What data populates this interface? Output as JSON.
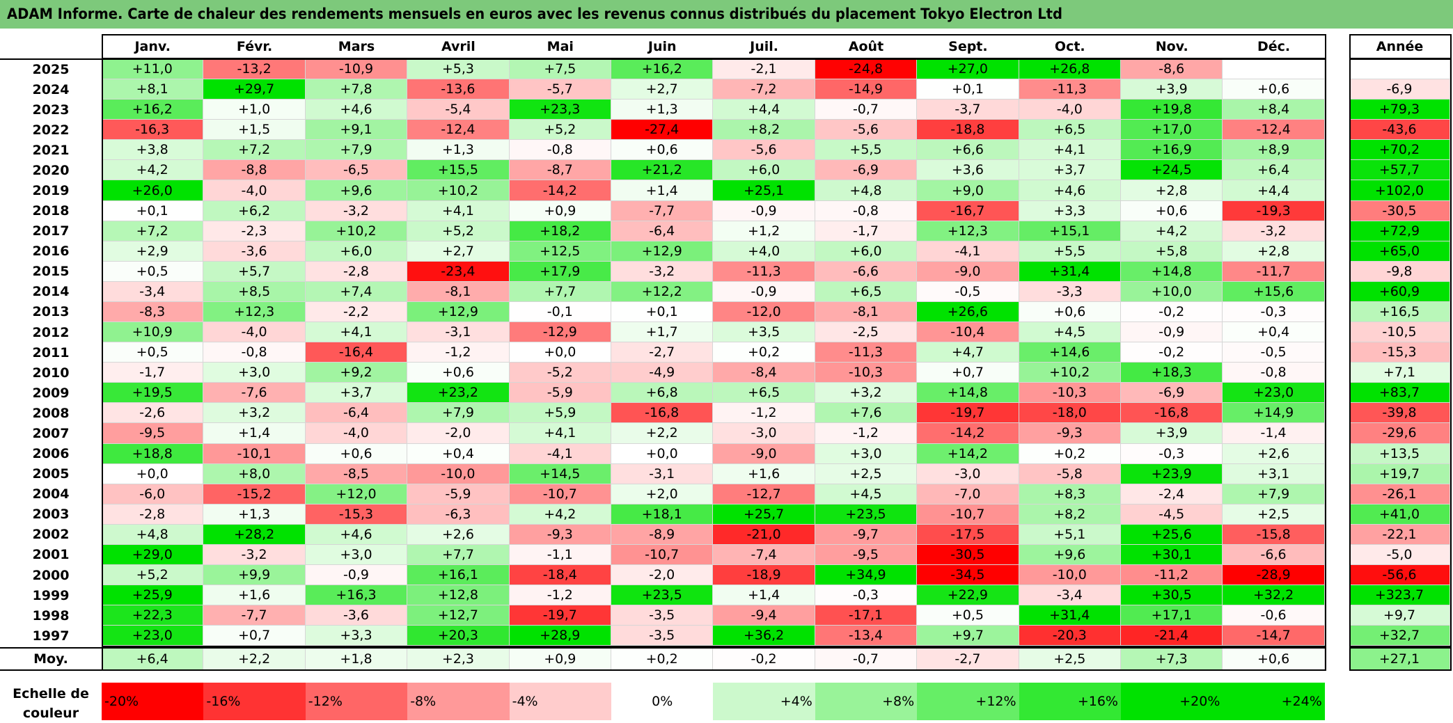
{
  "title": "ADAM Informe. Carte de chaleur des rendements mensuels en euros avec les revenus connus distribués du placement Tokyo Electron Ltd",
  "colors": {
    "title_bg": "#7dc97b",
    "max_green": "#00e000",
    "max_red": "#ff0000",
    "neutral": "#ffffff"
  },
  "chart_data": {
    "type": "heatmap",
    "title": "ADAM Informe. Carte de chaleur des rendements mensuels en euros avec les revenus connus distribués du placement Tokyo Electron Ltd",
    "columns": [
      "Janv.",
      "Févr.",
      "Mars",
      "Avril",
      "Mai",
      "Juin",
      "Juil.",
      "Août",
      "Sept.",
      "Oct.",
      "Nov.",
      "Déc."
    ],
    "year_column_label": "Année",
    "rows": [
      {
        "year": "2025",
        "values": [
          "+11,0",
          "-13,2",
          "-10,9",
          "+5,3",
          "+7,5",
          "+16,2",
          "-2,1",
          "-24,8",
          "+27,0",
          "+26,8",
          "-8,6",
          ""
        ],
        "annual": ""
      },
      {
        "year": "2024",
        "values": [
          "+8,1",
          "+29,7",
          "+7,8",
          "-13,6",
          "-5,7",
          "+2,7",
          "-7,2",
          "-14,9",
          "+0,1",
          "-11,3",
          "+3,9",
          "+0,6"
        ],
        "annual": "-6,9"
      },
      {
        "year": "2023",
        "values": [
          "+16,2",
          "+1,0",
          "+4,6",
          "-5,4",
          "+23,3",
          "+1,3",
          "+4,4",
          "-0,7",
          "-3,7",
          "-4,0",
          "+19,8",
          "+8,4"
        ],
        "annual": "+79,3"
      },
      {
        "year": "2022",
        "values": [
          "-16,3",
          "+1,5",
          "+9,1",
          "-12,4",
          "+5,2",
          "-27,4",
          "+8,2",
          "-5,6",
          "-18,8",
          "+6,5",
          "+17,0",
          "-12,4"
        ],
        "annual": "-43,6"
      },
      {
        "year": "2021",
        "values": [
          "+3,8",
          "+7,2",
          "+7,9",
          "+1,3",
          "-0,8",
          "+0,6",
          "-5,6",
          "+5,5",
          "+6,6",
          "+4,1",
          "+16,9",
          "+8,9"
        ],
        "annual": "+70,2"
      },
      {
        "year": "2020",
        "values": [
          "+4,2",
          "-8,8",
          "-6,5",
          "+15,5",
          "-8,7",
          "+21,2",
          "+6,0",
          "-6,9",
          "+3,6",
          "+3,7",
          "+24,5",
          "+6,4"
        ],
        "annual": "+57,7"
      },
      {
        "year": "2019",
        "values": [
          "+26,0",
          "-4,0",
          "+9,6",
          "+10,2",
          "-14,2",
          "+1,4",
          "+25,1",
          "+4,8",
          "+9,0",
          "+4,6",
          "+2,8",
          "+4,4"
        ],
        "annual": "+102,0"
      },
      {
        "year": "2018",
        "values": [
          "+0,1",
          "+6,2",
          "-3,2",
          "+4,1",
          "+0,9",
          "-7,7",
          "-0,9",
          "-0,8",
          "-16,7",
          "+3,3",
          "+0,6",
          "-19,3"
        ],
        "annual": "-30,5"
      },
      {
        "year": "2017",
        "values": [
          "+7,2",
          "-2,3",
          "+10,2",
          "+5,2",
          "+18,2",
          "-6,4",
          "+1,2",
          "-1,7",
          "+12,3",
          "+15,1",
          "+4,2",
          "-3,2"
        ],
        "annual": "+72,9"
      },
      {
        "year": "2016",
        "values": [
          "+2,9",
          "-3,6",
          "+6,0",
          "+2,7",
          "+12,5",
          "+12,9",
          "+4,0",
          "+6,0",
          "-4,1",
          "+5,5",
          "+5,8",
          "+2,8"
        ],
        "annual": "+65,0"
      },
      {
        "year": "2015",
        "values": [
          "+0,5",
          "+5,7",
          "-2,8",
          "-23,4",
          "+17,9",
          "-3,2",
          "-11,3",
          "-6,6",
          "-9,0",
          "+31,4",
          "+14,8",
          "-11,7"
        ],
        "annual": "-9,8"
      },
      {
        "year": "2014",
        "values": [
          "-3,4",
          "+8,5",
          "+7,4",
          "-8,1",
          "+7,7",
          "+12,2",
          "-0,9",
          "+6,5",
          "-0,5",
          "-3,3",
          "+10,0",
          "+15,6"
        ],
        "annual": "+60,9"
      },
      {
        "year": "2013",
        "values": [
          "-8,3",
          "+12,3",
          "-2,2",
          "+12,9",
          "-0,1",
          "+0,1",
          "-12,0",
          "-8,1",
          "+26,6",
          "+0,6",
          "-0,2",
          "-0,3"
        ],
        "annual": "+16,5"
      },
      {
        "year": "2012",
        "values": [
          "+10,9",
          "-4,0",
          "+4,1",
          "-3,1",
          "-12,9",
          "+1,7",
          "+3,5",
          "-2,5",
          "-10,4",
          "+4,5",
          "-0,9",
          "+0,4"
        ],
        "annual": "-10,5"
      },
      {
        "year": "2011",
        "values": [
          "+0,5",
          "-0,8",
          "-16,4",
          "-1,2",
          "+0,0",
          "-2,7",
          "+0,2",
          "-11,3",
          "+4,7",
          "+14,6",
          "-0,2",
          "-0,5"
        ],
        "annual": "-15,3"
      },
      {
        "year": "2010",
        "values": [
          "-1,7",
          "+3,0",
          "+9,2",
          "+0,6",
          "-5,2",
          "-4,9",
          "-8,4",
          "-10,3",
          "+0,7",
          "+10,2",
          "+18,3",
          "-0,8"
        ],
        "annual": "+7,1"
      },
      {
        "year": "2009",
        "values": [
          "+19,5",
          "-7,6",
          "+3,7",
          "+23,2",
          "-5,9",
          "+6,8",
          "+6,5",
          "+3,2",
          "+14,8",
          "-10,3",
          "-6,9",
          "+23,0"
        ],
        "annual": "+83,7"
      },
      {
        "year": "2008",
        "values": [
          "-2,6",
          "+3,2",
          "-6,4",
          "+7,9",
          "+5,9",
          "-16,8",
          "-1,2",
          "+7,6",
          "-19,7",
          "-18,0",
          "-16,8",
          "+14,9"
        ],
        "annual": "-39,8"
      },
      {
        "year": "2007",
        "values": [
          "-9,5",
          "+1,4",
          "-4,0",
          "-2,0",
          "+4,1",
          "+2,2",
          "-3,0",
          "-1,2",
          "-14,2",
          "-9,3",
          "+3,9",
          "-1,4"
        ],
        "annual": "-29,6"
      },
      {
        "year": "2006",
        "values": [
          "+18,8",
          "-10,1",
          "+0,6",
          "+0,4",
          "-4,1",
          "+0,0",
          "-9,0",
          "+3,0",
          "+14,2",
          "+0,2",
          "-0,3",
          "+2,6"
        ],
        "annual": "+13,5"
      },
      {
        "year": "2005",
        "values": [
          "+0,0",
          "+8,0",
          "-8,5",
          "-10,0",
          "+14,5",
          "-3,1",
          "+1,6",
          "+2,5",
          "-3,0",
          "-5,8",
          "+23,9",
          "+3,1"
        ],
        "annual": "+19,7"
      },
      {
        "year": "2004",
        "values": [
          "-6,0",
          "-15,2",
          "+12,0",
          "-5,9",
          "-10,7",
          "+2,0",
          "-12,7",
          "+4,5",
          "-7,0",
          "+8,3",
          "-2,4",
          "+7,9"
        ],
        "annual": "-26,1"
      },
      {
        "year": "2003",
        "values": [
          "-2,8",
          "+1,3",
          "-15,3",
          "-6,3",
          "+4,2",
          "+18,1",
          "+25,7",
          "+23,5",
          "-10,7",
          "+8,2",
          "-4,5",
          "+2,5"
        ],
        "annual": "+41,0"
      },
      {
        "year": "2002",
        "values": [
          "+4,8",
          "+28,2",
          "+4,6",
          "+2,6",
          "-9,3",
          "-8,9",
          "-21,0",
          "-9,7",
          "-17,5",
          "+5,1",
          "+25,6",
          "-15,8"
        ],
        "annual": "-22,1"
      },
      {
        "year": "2001",
        "values": [
          "+29,0",
          "-3,2",
          "+3,0",
          "+7,7",
          "-1,1",
          "-10,7",
          "-7,4",
          "-9,5",
          "-30,5",
          "+9,6",
          "+30,1",
          "-6,6"
        ],
        "annual": "-5,0"
      },
      {
        "year": "2000",
        "values": [
          "+5,2",
          "+9,9",
          "-0,9",
          "+16,1",
          "-18,4",
          "-2,0",
          "-18,9",
          "+34,9",
          "-34,5",
          "-10,0",
          "-11,2",
          "-28,9"
        ],
        "annual": "-56,6"
      },
      {
        "year": "1999",
        "values": [
          "+25,9",
          "+1,6",
          "+16,3",
          "+12,8",
          "-1,2",
          "+23,5",
          "+1,4",
          "-0,3",
          "+22,9",
          "-3,4",
          "+30,5",
          "+32,2"
        ],
        "annual": "+323,7"
      },
      {
        "year": "1998",
        "values": [
          "+22,3",
          "-7,7",
          "-3,6",
          "+12,7",
          "-19,7",
          "-3,5",
          "-9,4",
          "-17,1",
          "+0,5",
          "+31,4",
          "+17,1",
          "-0,6"
        ],
        "annual": "+9,7"
      },
      {
        "year": "1997",
        "values": [
          "+23,0",
          "+0,7",
          "+3,3",
          "+20,3",
          "+28,9",
          "-3,5",
          "+36,2",
          "-13,4",
          "+9,7",
          "-20,3",
          "-21,4",
          "-14,7"
        ],
        "annual": "+32,7"
      }
    ],
    "average": {
      "label": "Moy.",
      "values": [
        "+6,4",
        "+2,2",
        "+1,8",
        "+2,3",
        "+0,9",
        "+0,2",
        "-0,2",
        "-0,7",
        "-2,7",
        "+2,5",
        "+7,3",
        "+0,6"
      ],
      "annual": "+27,1"
    },
    "scale": {
      "label": "Echelle de couleur",
      "stops": [
        "-20%",
        "-16%",
        "-12%",
        "-8%",
        "-4%",
        "0%",
        "+4%",
        "+8%",
        "+12%",
        "+16%",
        "+20%",
        "+24%"
      ]
    }
  }
}
